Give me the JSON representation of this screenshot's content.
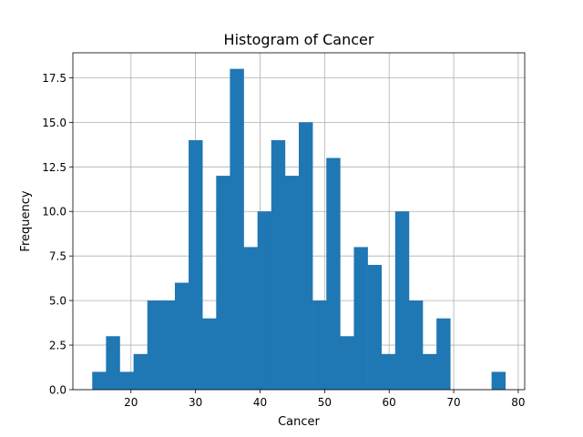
{
  "chart_data": {
    "type": "bar",
    "title": "Histogram of Cancer",
    "xlabel": "Cancer",
    "ylabel": "Frequency",
    "bin_edges": [
      14,
      16.133,
      18.267,
      20.4,
      22.533,
      24.667,
      26.8,
      28.933,
      31.067,
      33.2,
      35.333,
      37.467,
      39.6,
      41.733,
      43.867,
      46,
      48.133,
      50.267,
      52.4,
      54.533,
      56.667,
      58.8,
      60.933,
      63.067,
      65.2,
      67.333,
      69.467,
      71.6,
      73.733,
      75.867,
      78
    ],
    "values": [
      1,
      3,
      1,
      2,
      5,
      5,
      6,
      14,
      4,
      12,
      18,
      8,
      10,
      14,
      12,
      15,
      5,
      13,
      3,
      8,
      7,
      2,
      10,
      5,
      2,
      4,
      0,
      0,
      0,
      1
    ],
    "xlim": [
      11,
      81
    ],
    "ylim": [
      0,
      18.9
    ],
    "xticks": [
      20,
      30,
      40,
      50,
      60,
      70,
      80
    ],
    "yticks": [
      0.0,
      2.5,
      5.0,
      7.5,
      10.0,
      12.5,
      15.0,
      17.5
    ],
    "ytick_labels": [
      "0.0",
      "2.5",
      "5.0",
      "7.5",
      "10.0",
      "12.5",
      "15.0",
      "17.5"
    ],
    "bar_color": "#1f77b4",
    "grid": true
  }
}
